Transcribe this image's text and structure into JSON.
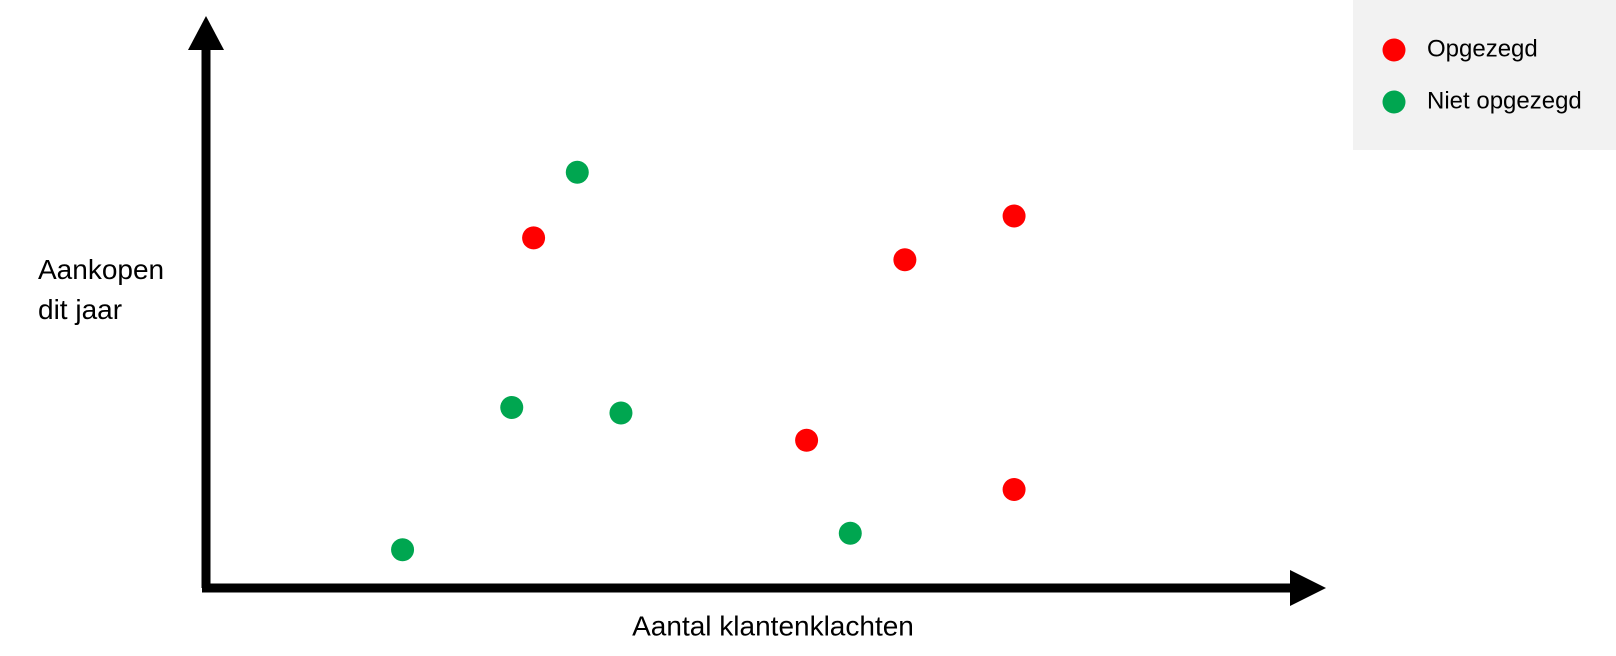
{
  "chart_data": {
    "type": "scatter",
    "x_label": "Aantal klantenklachten",
    "y_label": "Aankopen dit jaar",
    "xlim": [
      0,
      100
    ],
    "ylim": [
      0,
      100
    ],
    "legend": "top-right",
    "series": [
      {
        "name": "Opgezegd",
        "color": "#ff0000",
        "x": [
          30,
          64,
          74,
          55,
          74
        ],
        "values": [
          64,
          60,
          68,
          27,
          18
        ]
      },
      {
        "name": "Niet opgezegd",
        "color": "#00a650",
        "x": [
          34,
          28,
          38,
          18,
          59
        ],
        "values": [
          76,
          33,
          32,
          7,
          10
        ]
      }
    ]
  }
}
